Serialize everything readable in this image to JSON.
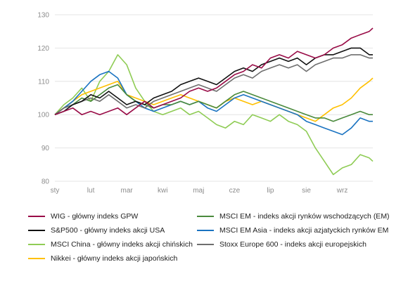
{
  "chart_data": {
    "type": "line",
    "title": "",
    "xlabel": "",
    "ylabel": "",
    "ylim": [
      80,
      130
    ],
    "y_ticks": [
      80,
      90,
      100,
      110,
      120,
      130
    ],
    "x_ticks": [
      "sty",
      "lut",
      "mar",
      "kwi",
      "maj",
      "cze",
      "lip",
      "sie",
      "wrz"
    ],
    "x_range_months": [
      0,
      8.85
    ],
    "grid": "horizontal",
    "legend_position": "bottom",
    "series": [
      {
        "name": "WIG - główny indeks GPW",
        "color": "#990c47",
        "x": [
          0,
          0.25,
          0.5,
          0.75,
          1,
          1.25,
          1.5,
          1.75,
          2,
          2.25,
          2.5,
          2.75,
          3,
          3.25,
          3.5,
          3.75,
          4,
          4.25,
          4.5,
          4.75,
          5,
          5.25,
          5.5,
          5.75,
          6,
          6.25,
          6.5,
          6.75,
          7,
          7.25,
          7.5,
          7.75,
          8,
          8.25,
          8.5,
          8.75,
          8.85
        ],
        "values": [
          100,
          101,
          102,
          100,
          101,
          100,
          101,
          102,
          100,
          102,
          104,
          102,
          103,
          104,
          105,
          107,
          108,
          107,
          108,
          110,
          112,
          113,
          115,
          114,
          117,
          118,
          117,
          119,
          118,
          117,
          118,
          120,
          121,
          123,
          124,
          125,
          126
        ]
      },
      {
        "name": "S&P500 - główny indeks akcji USA",
        "color": "#111111",
        "x": [
          0,
          0.25,
          0.5,
          0.75,
          1,
          1.25,
          1.5,
          1.75,
          2,
          2.25,
          2.5,
          2.75,
          3,
          3.25,
          3.5,
          3.75,
          4,
          4.25,
          4.5,
          4.75,
          5,
          5.25,
          5.5,
          5.75,
          6,
          6.25,
          6.5,
          6.75,
          7,
          7.25,
          7.5,
          7.75,
          8,
          8.25,
          8.5,
          8.75,
          8.85
        ],
        "values": [
          100,
          101,
          103,
          104,
          106,
          105,
          107,
          105,
          103,
          104,
          103,
          105,
          106,
          107,
          109,
          110,
          111,
          110,
          109,
          111,
          113,
          114,
          113,
          115,
          116,
          117,
          116,
          117,
          115,
          117,
          118,
          118,
          119,
          120,
          120,
          118,
          118
        ]
      },
      {
        "name": "MSCI China - główny indeks akcji chińskich",
        "color": "#8fcc55",
        "x": [
          0,
          0.25,
          0.5,
          0.75,
          1,
          1.25,
          1.5,
          1.75,
          2,
          2.25,
          2.5,
          2.75,
          3,
          3.25,
          3.5,
          3.75,
          4,
          4.25,
          4.5,
          4.75,
          5,
          5.25,
          5.5,
          5.75,
          6,
          6.25,
          6.5,
          6.75,
          7,
          7.25,
          7.5,
          7.75,
          8,
          8.25,
          8.5,
          8.75,
          8.85
        ],
        "values": [
          100,
          103,
          105,
          108,
          104,
          110,
          113,
          118,
          115,
          108,
          104,
          101,
          100,
          101,
          102,
          100,
          101,
          99,
          97,
          96,
          98,
          97,
          100,
          99,
          98,
          100,
          98,
          97,
          95,
          90,
          86,
          82,
          84,
          85,
          88,
          87,
          86
        ]
      },
      {
        "name": "Nikkei - główny indeks akcji japońskich",
        "color": "#ffc000",
        "x": [
          0,
          0.25,
          0.5,
          0.75,
          1,
          1.25,
          1.5,
          1.75,
          2,
          2.25,
          2.5,
          2.75,
          3,
          3.25,
          3.5,
          3.75,
          4,
          4.25,
          4.5,
          4.75,
          5,
          5.25,
          5.5,
          5.75,
          6,
          6.25,
          6.5,
          6.75,
          7,
          7.25,
          7.5,
          7.75,
          8,
          8.25,
          8.5,
          8.75,
          8.85
        ],
        "values": [
          100,
          102,
          104,
          106,
          107,
          108,
          109,
          110,
          106,
          105,
          104,
          103,
          104,
          105,
          106,
          105,
          104,
          103,
          102,
          104,
          105,
          104,
          103,
          104,
          103,
          102,
          101,
          100,
          99,
          98,
          100,
          102,
          103,
          105,
          108,
          110,
          111
        ]
      },
      {
        "name": "MSCI EM - indeks akcji rynków wschodzących (EM)",
        "color": "#4a8a3c",
        "x": [
          0,
          0.25,
          0.5,
          0.75,
          1,
          1.25,
          1.5,
          1.75,
          2,
          2.25,
          2.5,
          2.75,
          3,
          3.25,
          3.5,
          3.75,
          4,
          4.25,
          4.5,
          4.75,
          5,
          5.25,
          5.5,
          5.75,
          6,
          6.25,
          6.5,
          6.75,
          7,
          7.25,
          7.5,
          7.75,
          8,
          8.25,
          8.5,
          8.75,
          8.85
        ],
        "values": [
          100,
          102,
          103,
          105,
          104,
          106,
          108,
          109,
          106,
          104,
          103,
          102,
          103,
          103,
          104,
          103,
          104,
          103,
          102,
          104,
          106,
          107,
          106,
          105,
          104,
          103,
          102,
          101,
          100,
          99,
          99,
          98,
          99,
          100,
          101,
          100,
          100
        ]
      },
      {
        "name": "MSCI EM Asia - indeks akcji azjatyckich rynków EM",
        "color": "#1a73c1",
        "x": [
          0,
          0.25,
          0.5,
          0.75,
          1,
          1.25,
          1.5,
          1.75,
          2,
          2.25,
          2.5,
          2.75,
          3,
          3.25,
          3.5,
          3.75,
          4,
          4.25,
          4.5,
          4.75,
          5,
          5.25,
          5.5,
          5.75,
          6,
          6.25,
          6.5,
          6.75,
          7,
          7.25,
          7.5,
          7.75,
          8,
          8.25,
          8.5,
          8.75,
          8.85
        ],
        "values": [
          100,
          102,
          104,
          107,
          110,
          112,
          113,
          111,
          106,
          104,
          102,
          101,
          102,
          103,
          104,
          103,
          104,
          102,
          101,
          103,
          105,
          106,
          105,
          104,
          103,
          102,
          101,
          100,
          98,
          97,
          96,
          95,
          94,
          96,
          99,
          98,
          98
        ]
      },
      {
        "name": "Stoxx Europe 600 - indeks akcji europejskich",
        "color": "#6e6e6e",
        "x": [
          0,
          0.25,
          0.5,
          0.75,
          1,
          1.25,
          1.5,
          1.75,
          2,
          2.25,
          2.5,
          2.75,
          3,
          3.25,
          3.5,
          3.75,
          4,
          4.25,
          4.5,
          4.75,
          5,
          5.25,
          5.5,
          5.75,
          6,
          6.25,
          6.5,
          6.75,
          7,
          7.25,
          7.5,
          7.75,
          8,
          8.25,
          8.5,
          8.75,
          8.85
        ],
        "values": [
          100,
          102,
          103,
          104,
          105,
          104,
          106,
          104,
          102,
          103,
          102,
          104,
          105,
          106,
          107,
          108,
          109,
          108,
          107,
          109,
          111,
          112,
          111,
          113,
          114,
          115,
          114,
          115,
          113,
          115,
          116,
          117,
          117,
          118,
          118,
          117,
          117
        ]
      }
    ]
  }
}
